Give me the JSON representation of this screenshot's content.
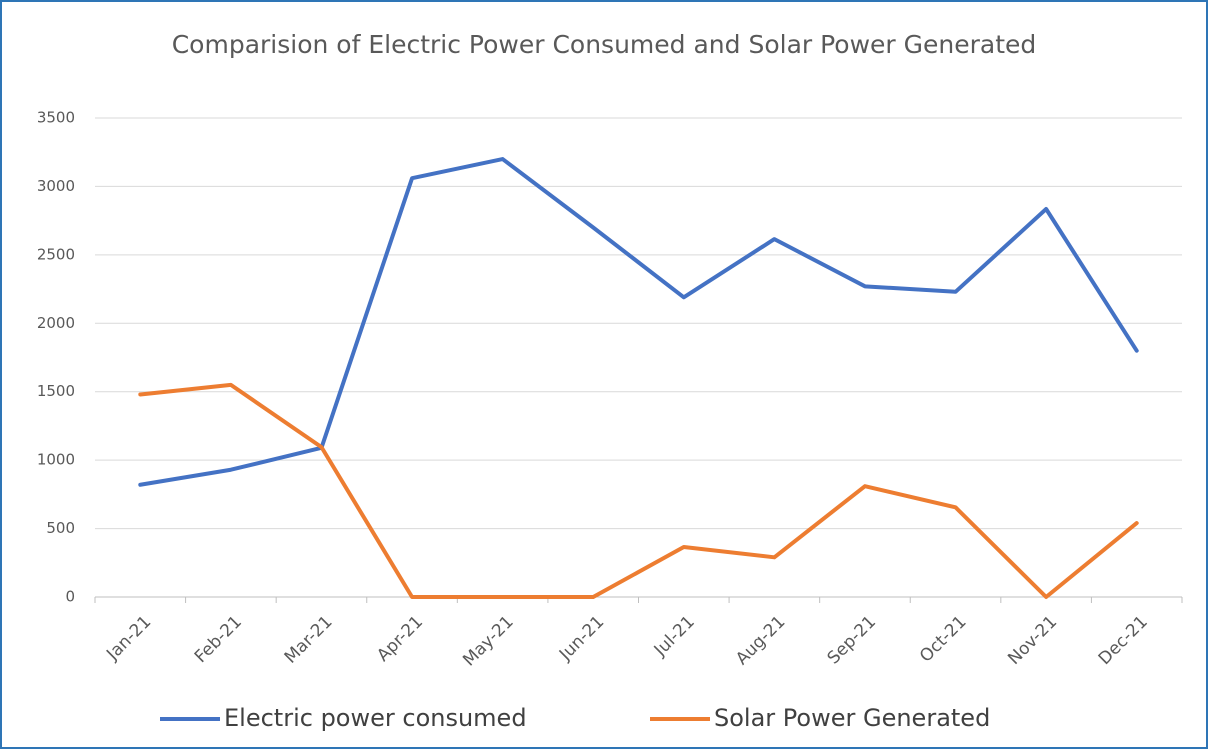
{
  "chart_data": {
    "type": "line",
    "title": "Comparision of Electric Power Consumed and Solar Power Generated",
    "categories": [
      "Jan-21",
      "Feb-21",
      "Mar-21",
      "Apr-21",
      "May-21",
      "Jun-21",
      "Jul-21",
      "Aug-21",
      "Sep-21",
      "Oct-21",
      "Nov-21",
      "Dec-21"
    ],
    "series": [
      {
        "name": "Electric power consumed",
        "color": "#4472c4",
        "values": [
          820,
          930,
          1090,
          3060,
          3200,
          2700,
          2190,
          2615,
          2270,
          2230,
          2835,
          1800
        ]
      },
      {
        "name": "Solar Power Generated",
        "color": "#ed7d31",
        "values": [
          1480,
          1550,
          1095,
          0,
          0,
          0,
          365,
          290,
          810,
          655,
          0,
          540
        ]
      }
    ],
    "ylim": [
      0,
      3500
    ],
    "yticks": [
      0,
      500,
      1000,
      1500,
      2000,
      2500,
      3000,
      3500
    ],
    "grid": true,
    "legend": "bottom"
  }
}
